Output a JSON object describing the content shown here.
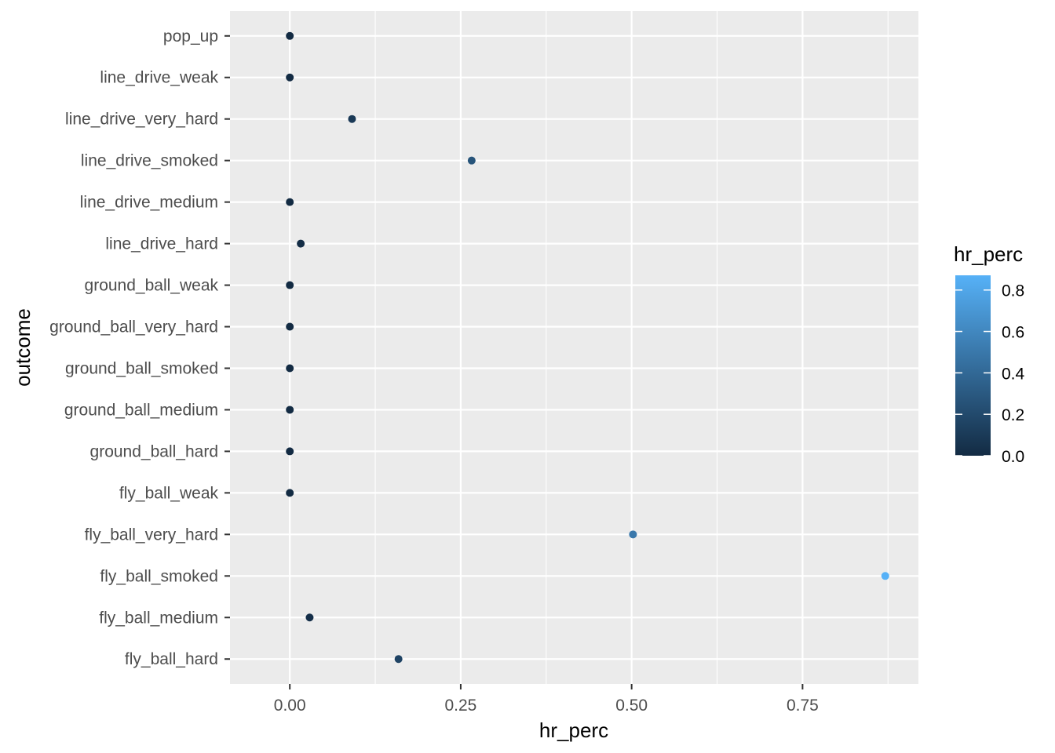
{
  "chart_data": {
    "type": "scatter",
    "title": "",
    "xlabel": "hr_perc",
    "ylabel": "outcome",
    "xlim": [
      -0.0875,
      0.9195
    ],
    "x_ticks": [
      0.0,
      0.25,
      0.5,
      0.75
    ],
    "x_tick_labels": [
      "0.00",
      "0.25",
      "0.50",
      "0.75"
    ],
    "categories": [
      "fly_ball_hard",
      "fly_ball_medium",
      "fly_ball_smoked",
      "fly_ball_very_hard",
      "fly_ball_weak",
      "ground_ball_hard",
      "ground_ball_medium",
      "ground_ball_smoked",
      "ground_ball_very_hard",
      "ground_ball_weak",
      "line_drive_hard",
      "line_drive_medium",
      "line_drive_smoked",
      "line_drive_very_hard",
      "line_drive_weak",
      "pop_up"
    ],
    "values": [
      0.159,
      0.029,
      0.871,
      0.502,
      0.0,
      0.0,
      0.0,
      0.0,
      0.0,
      0.0,
      0.016,
      0.0,
      0.266,
      0.091,
      0.0,
      0.0
    ],
    "grid": true,
    "panel_background": "#ebebeb",
    "grid_color": "#ffffff",
    "color_scale": {
      "low": "#132B43",
      "high": "#56B1F7",
      "min": 0.0,
      "max": 0.871
    },
    "legend": {
      "title": "hr_perc",
      "placement": "right",
      "ticks": [
        0.0,
        0.2,
        0.4,
        0.6,
        0.8
      ],
      "tick_labels": [
        "0.0",
        "0.2",
        "0.4",
        "0.6",
        "0.8"
      ]
    }
  }
}
